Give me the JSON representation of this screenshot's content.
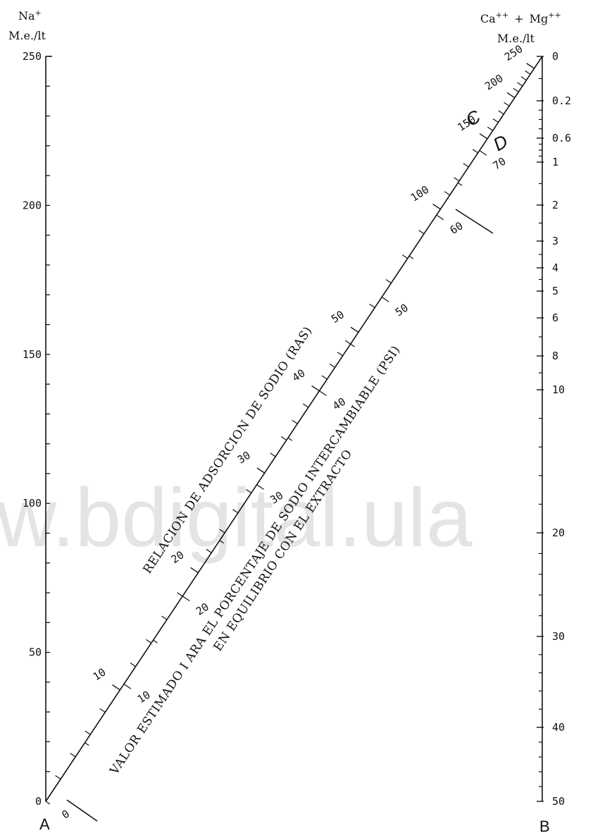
{
  "left_axis": {
    "ion": "Na",
    "ion_charge": "+",
    "unit": "M.e./lt",
    "tick_labels": [
      "250",
      "200",
      "150",
      "100",
      "50",
      "0"
    ],
    "tick_values": [
      250,
      200,
      150,
      100,
      50,
      0
    ],
    "corner_label": "A"
  },
  "right_axis": {
    "ion1": "Ca",
    "ion1_charge": "++",
    "plus": "+",
    "ion2": "Mg",
    "ion2_charge": "++",
    "unit": "M.e./lt",
    "tick_labels": [
      "0",
      "0.2",
      "0.6",
      "1",
      "2",
      "3",
      "4",
      "5",
      "6",
      "8",
      "10",
      "20",
      "30",
      "40",
      "50"
    ],
    "tick_values": [
      0,
      0.2,
      0.6,
      1,
      2,
      3,
      4,
      5,
      6,
      8,
      10,
      20,
      30,
      40,
      50
    ],
    "corner_label": "B"
  },
  "ras_scale": {
    "title": "RELACION DE ADSORCION DE SODIO (RAS)",
    "labels": [
      "10",
      "20",
      "30",
      "40",
      "50",
      "100",
      "150",
      "200",
      "250"
    ],
    "label_values": [
      10,
      20,
      30,
      40,
      50,
      100,
      150,
      200,
      250
    ],
    "scale_letter": "C"
  },
  "psi_scale": {
    "title_line1": "VALOR ESTIMADO I ARA EL PORCENTAJE DE SODIO INTERCAMBIABLE (PSI)",
    "title_line2": "EN EQUILIBRIO CON EL EXTRACTO",
    "labels": [
      "0",
      "10",
      "20",
      "30",
      "40",
      "50",
      "60",
      "70"
    ],
    "label_values": [
      0,
      10,
      20,
      30,
      40,
      50,
      60,
      70
    ],
    "scale_letter": "D"
  },
  "watermark": "w.bdigital.ula",
  "colors": {
    "ink": "#111111",
    "watermark": "#cfcfcf",
    "background": "#ffffff"
  }
}
